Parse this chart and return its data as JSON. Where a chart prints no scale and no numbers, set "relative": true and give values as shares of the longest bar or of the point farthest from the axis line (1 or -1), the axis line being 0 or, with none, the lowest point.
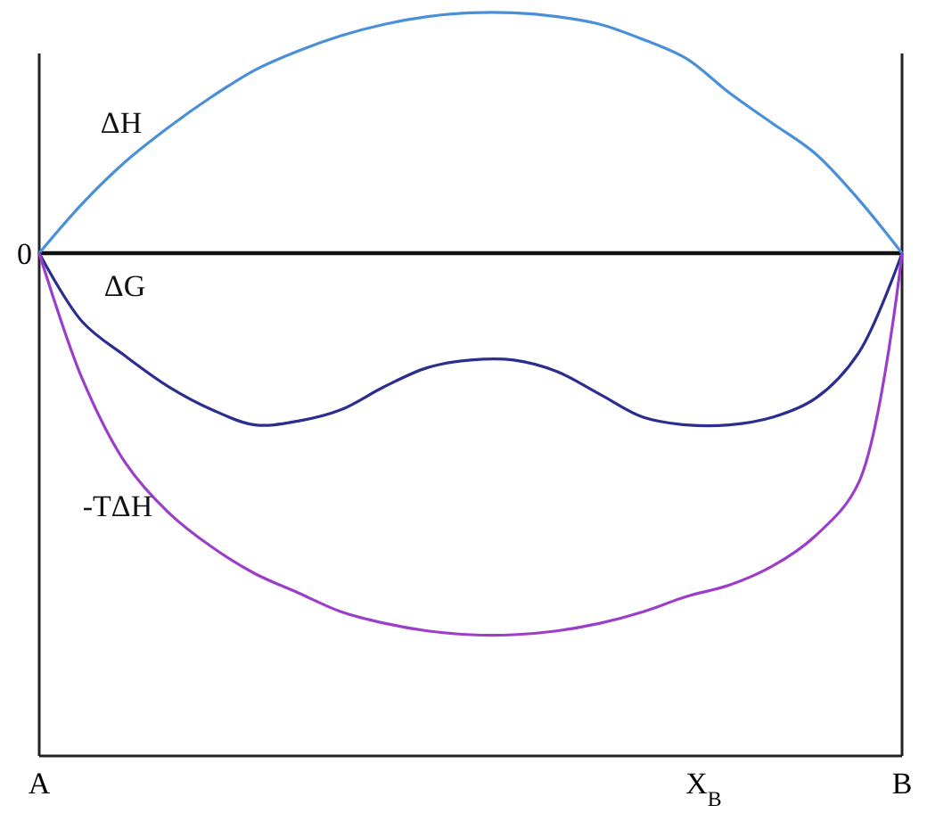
{
  "chart_data": {
    "type": "line",
    "relative": true,
    "xlabel": "X$_{B}$",
    "annotations": [
      "0"
    ],
    "marker": "none",
    "line_style": "solid",
    "categories": [
      "A",
      null,
      null,
      null,
      null,
      null,
      null,
      null,
      null,
      null,
      null,
      null,
      null,
      null,
      null,
      null,
      null,
      null,
      null,
      null,
      "B"
    ],
    "series": [
      {
        "name": "ΔH",
        "color": "#4a90d9",
        "values": [
          0,
          0.13,
          0.24,
          0.33,
          0.41,
          0.48,
          0.53,
          0.57,
          0.6,
          0.62,
          0.63,
          0.63,
          0.62,
          0.6,
          0.56,
          0.51,
          0.42,
          0.34,
          0.26,
          0.14,
          0
        ]
      },
      {
        "name": "ΔG",
        "color": "#2b2e8f",
        "values": [
          0,
          -0.18,
          -0.27,
          -0.35,
          -0.41,
          -0.45,
          -0.44,
          -0.41,
          -0.35,
          -0.3,
          -0.28,
          -0.28,
          -0.31,
          -0.37,
          -0.43,
          -0.45,
          -0.45,
          -0.43,
          -0.38,
          -0.26,
          0
        ]
      },
      {
        "name": "-TΔH",
        "color": "#9b3fc8",
        "values": [
          0,
          -0.33,
          -0.55,
          -0.68,
          -0.77,
          -0.84,
          -0.89,
          -0.94,
          -0.97,
          -0.99,
          -1,
          -1,
          -0.99,
          -0.97,
          -0.94,
          -0.9,
          -0.87,
          -0.82,
          -0.74,
          -0.6,
          0
        ]
      }
    ]
  }
}
